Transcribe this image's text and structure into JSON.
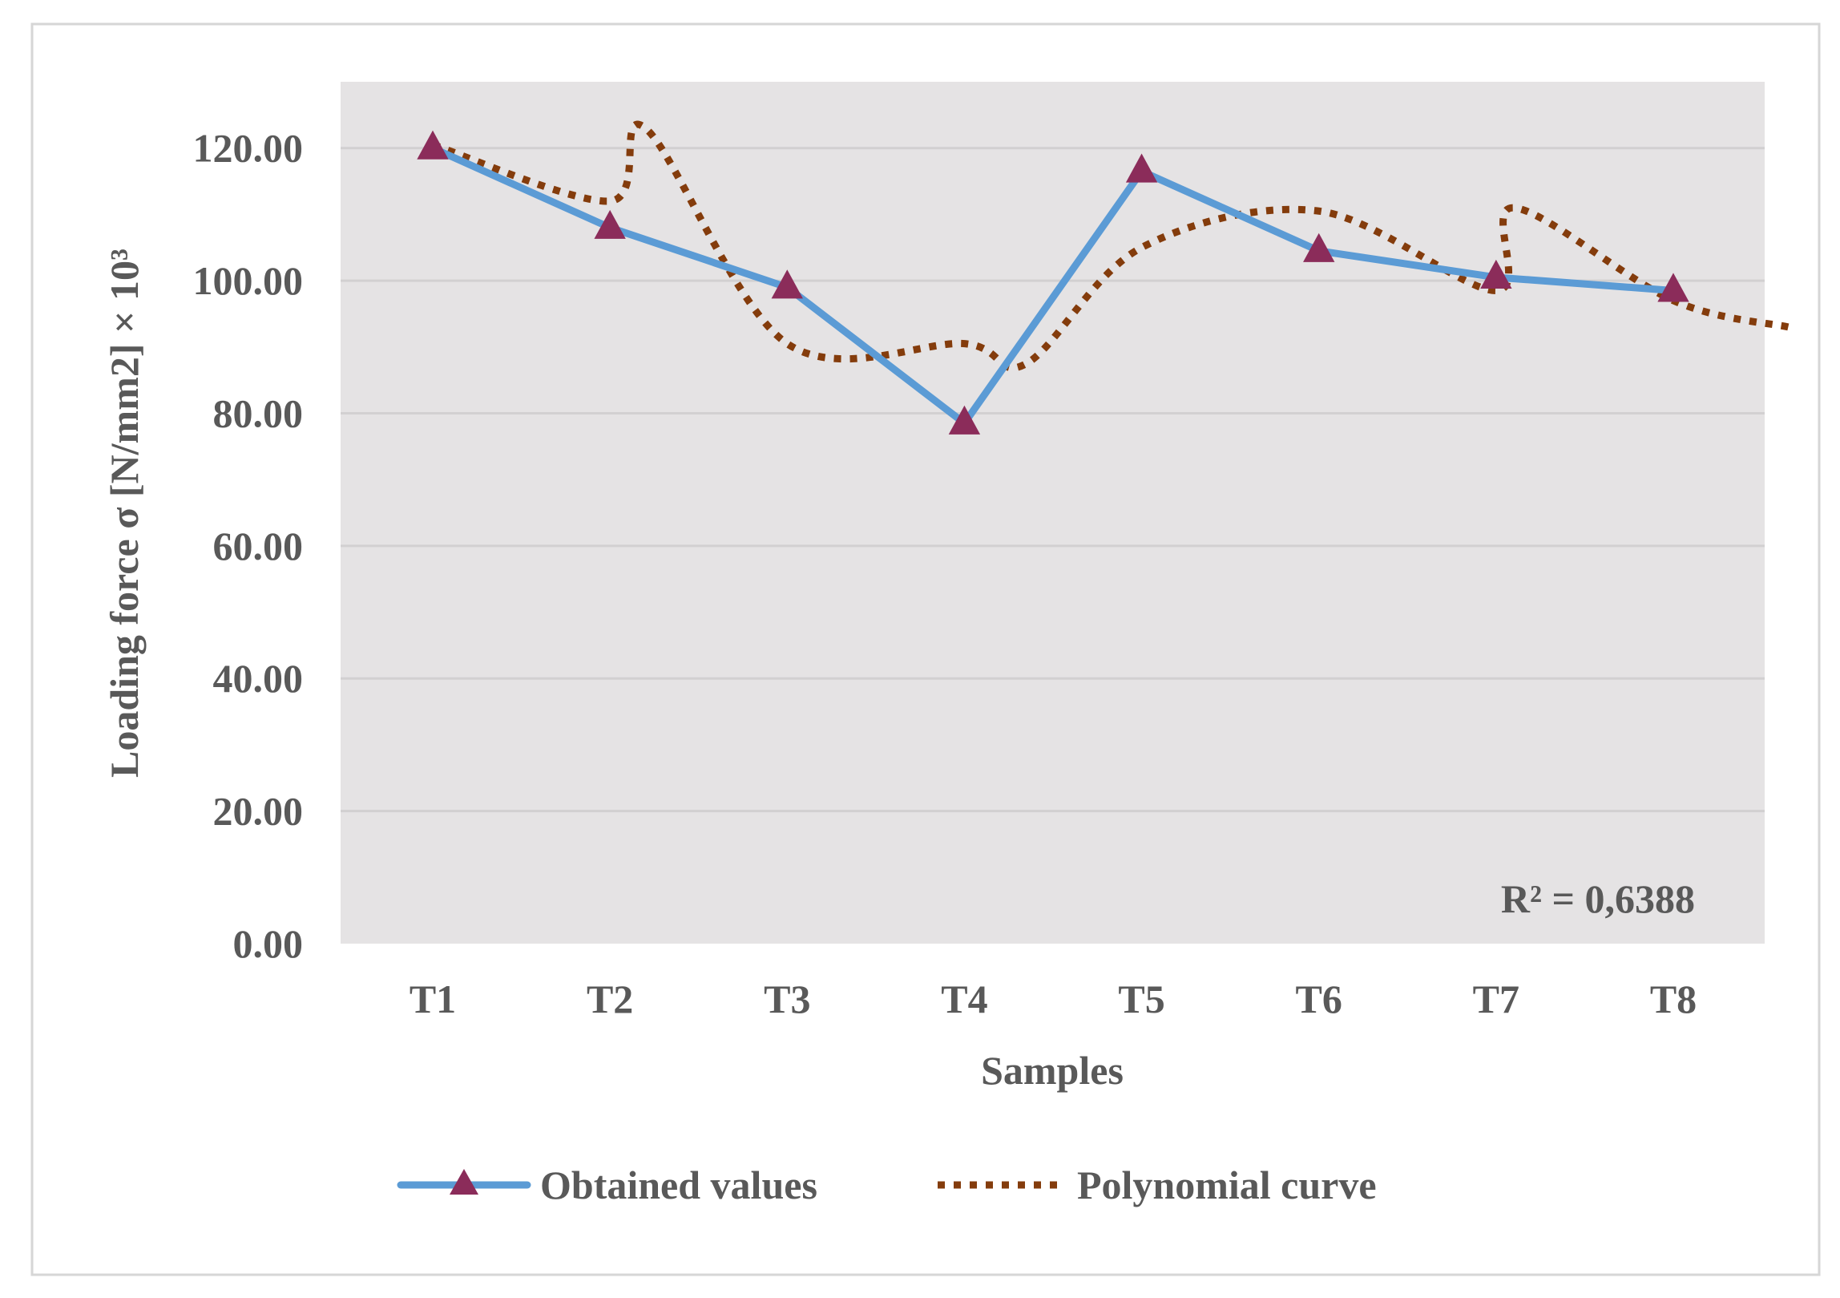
{
  "chart_data": {
    "type": "line",
    "categories": [
      "T1",
      "T2",
      "T3",
      "T4",
      "T5",
      "T6",
      "T7",
      "T8"
    ],
    "series": [
      {
        "name": "Obtained values",
        "values": [
          120.0,
          108.0,
          99.0,
          78.5,
          116.5,
          104.5,
          100.5,
          98.5
        ],
        "color": "#5B9BD5",
        "marker_color": "#8B2C5A",
        "marker": "triangle"
      }
    ],
    "trendline": {
      "name": "Polynomial curve",
      "kind": "polynomial",
      "color": "#843C0C",
      "style": "dotted",
      "values": [
        120.5,
        112.0,
        90.5,
        90.5,
        105.0,
        110.5,
        98.5,
        97.0
      ],
      "peaks": [
        {
          "x": 1.2,
          "y": 123.0
        },
        {
          "x": 3.35,
          "y": 87.5
        },
        {
          "x": 6.1,
          "y": 111.0
        },
        {
          "x": 7.65,
          "y": 93.0
        }
      ],
      "r_squared_label": "R² = 0,6388"
    },
    "title": "",
    "xlabel": "Samples",
    "ylabel": "Loading force σ [N/mm2] × 10³",
    "ylim": [
      0,
      130
    ],
    "yticks": [
      {
        "value": 0,
        "label": "0.00"
      },
      {
        "value": 20,
        "label": "20.00"
      },
      {
        "value": 40,
        "label": "40.00"
      },
      {
        "value": 60,
        "label": "60.00"
      },
      {
        "value": 80,
        "label": "80.00"
      },
      {
        "value": 100,
        "label": "100.00"
      },
      {
        "value": 120,
        "label": "120.00"
      }
    ],
    "grid": true,
    "plot_background": "#E5E3E4",
    "legend_position": "bottom"
  }
}
